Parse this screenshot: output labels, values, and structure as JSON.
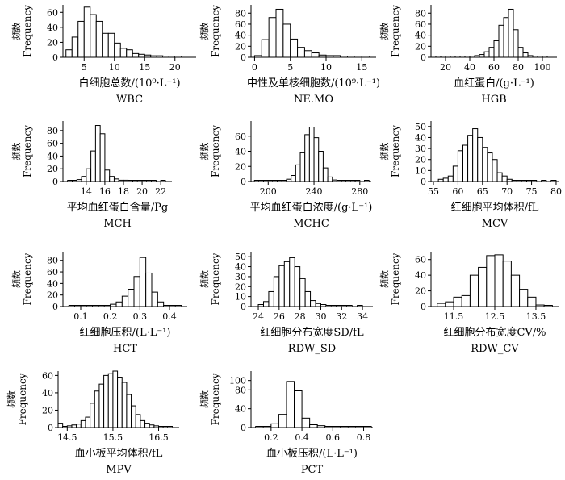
{
  "figure": {
    "ylabel_cn": "频数",
    "ylabel_en": "Frequency"
  },
  "chart_data": [
    {
      "type": "bar",
      "id": "wbc",
      "xlabel_cn": "白细胞总数/(10⁹·L⁻¹)",
      "xlabel_en": "WBC",
      "xlim": [
        1.5,
        23.5
      ],
      "ylim": [
        0,
        70
      ],
      "xticks": [
        5,
        10,
        15,
        20
      ],
      "yticks": [
        0,
        20,
        40,
        60
      ],
      "bin_width": 1,
      "bins": [
        2.5,
        3.5,
        4.5,
        5.5,
        6.5,
        7.5,
        8.5,
        9.5,
        10.5,
        11.5,
        12.5,
        13.5,
        14.5,
        15.5,
        16.5,
        17.5,
        18.5,
        19.5,
        20.5,
        21.5
      ],
      "values": [
        10,
        27,
        48,
        67,
        57,
        48,
        32,
        32,
        19,
        12,
        10,
        5,
        4,
        3,
        2,
        2,
        1,
        1,
        1,
        0
      ]
    },
    {
      "type": "bar",
      "id": "nemo",
      "xlabel_cn": "中性及单核细胞数/(10⁹·L⁻¹)",
      "xlabel_en": "NE.MO",
      "xlim": [
        -0.5,
        17
      ],
      "ylim": [
        0,
        95
      ],
      "xticks": [
        0,
        5,
        10,
        15
      ],
      "yticks": [
        0,
        20,
        40,
        60,
        80
      ],
      "bin_width": 1,
      "bins": [
        0.5,
        1.5,
        2.5,
        3.5,
        4.5,
        5.5,
        6.5,
        7.5,
        8.5,
        9.5,
        10.5,
        11.5,
        12.5,
        13.5,
        14.5,
        15.5
      ],
      "values": [
        3,
        32,
        72,
        87,
        60,
        33,
        18,
        12,
        8,
        4,
        3,
        3,
        2,
        1,
        1,
        1
      ]
    },
    {
      "type": "bar",
      "id": "hgb",
      "xlabel_cn": "血红蛋白/(g·L⁻¹)",
      "xlabel_en": "HGB",
      "xlim": [
        8,
        112
      ],
      "ylim": [
        0,
        95
      ],
      "xticks": [
        20,
        40,
        60,
        80,
        100
      ],
      "yticks": [
        0,
        20,
        40,
        60,
        80
      ],
      "bin_width": 4,
      "bins": [
        14,
        18,
        22,
        26,
        30,
        34,
        38,
        42,
        46,
        50,
        54,
        58,
        62,
        66,
        70,
        74,
        78,
        82,
        86,
        90,
        94,
        98,
        102,
        106
      ],
      "values": [
        1,
        1,
        1,
        1,
        1,
        1,
        1,
        2,
        3,
        5,
        10,
        18,
        30,
        58,
        72,
        87,
        50,
        18,
        8,
        3,
        2,
        1,
        1,
        0
      ]
    },
    {
      "type": "bar",
      "id": "mch",
      "xlabel_cn": "平均血红蛋白含量/Pg",
      "xlabel_en": "MCH",
      "xlim": [
        11.5,
        23.2
      ],
      "ylim": [
        0,
        95
      ],
      "xticks": [
        14,
        16,
        18,
        20,
        22
      ],
      "yticks": [
        0,
        20,
        40,
        60,
        80
      ],
      "bin_width": 0.5,
      "bins": [
        12.25,
        12.75,
        13.25,
        13.75,
        14.25,
        14.75,
        15.25,
        15.75,
        16.25,
        16.75,
        17.25,
        17.75,
        18.25,
        18.75,
        19.25,
        19.75,
        20.25,
        20.75,
        21.25,
        21.75,
        22.25
      ],
      "values": [
        1,
        1,
        3,
        8,
        20,
        48,
        88,
        75,
        18,
        8,
        4,
        2,
        2,
        1,
        1,
        1,
        1,
        1,
        1,
        0,
        1
      ]
    },
    {
      "type": "bar",
      "id": "mchc",
      "xlabel_cn": "平均血红蛋白浓度/(g·L⁻¹)",
      "xlabel_en": "MCHC",
      "xlim": [
        185,
        290
      ],
      "ylim": [
        0,
        80
      ],
      "xticks": [
        200,
        240,
        280
      ],
      "yticks": [
        0,
        20,
        40,
        60
      ],
      "bin_width": 4,
      "bins": [
        190,
        194,
        198,
        202,
        206,
        210,
        214,
        218,
        222,
        226,
        230,
        234,
        238,
        242,
        246,
        250,
        254,
        258,
        262,
        266,
        270,
        274,
        278,
        282,
        286
      ],
      "values": [
        1,
        1,
        1,
        1,
        1,
        1,
        1,
        3,
        8,
        22,
        38,
        62,
        72,
        58,
        40,
        18,
        6,
        2,
        1,
        1,
        1,
        1,
        1,
        0,
        1
      ]
    },
    {
      "type": "bar",
      "id": "mcv",
      "xlabel_cn": "红细胞平均体积/fL",
      "xlabel_en": "MCV",
      "xlim": [
        54.5,
        80.5
      ],
      "ylim": [
        0,
        55
      ],
      "xticks": [
        55,
        60,
        65,
        70,
        75,
        80
      ],
      "yticks": [
        0,
        10,
        20,
        30,
        40,
        50
      ],
      "bin_width": 1,
      "bins": [
        56.5,
        57.5,
        58.5,
        59.5,
        60.5,
        61.5,
        62.5,
        63.5,
        64.5,
        65.5,
        66.5,
        67.5,
        68.5,
        69.5,
        70.5,
        71.5,
        72.5,
        73.5,
        74.5,
        75.5,
        76.5,
        77.5,
        78.5,
        79.5
      ],
      "values": [
        2,
        3,
        5,
        14,
        28,
        33,
        42,
        48,
        40,
        31,
        26,
        20,
        8,
        5,
        2,
        1,
        1,
        1,
        1,
        1,
        0,
        1,
        0,
        1
      ]
    },
    {
      "type": "bar",
      "id": "hct",
      "xlabel_cn": "红细胞压积/(L·L⁻¹)",
      "xlabel_en": "HCT",
      "xlim": [
        0.04,
        0.46
      ],
      "ylim": [
        0,
        95
      ],
      "xticks": [
        0.1,
        0.2,
        0.3,
        0.4
      ],
      "yticks": [
        0,
        20,
        40,
        60,
        80
      ],
      "bin_width": 0.02,
      "bins": [
        0.07,
        0.09,
        0.11,
        0.13,
        0.15,
        0.17,
        0.19,
        0.21,
        0.23,
        0.25,
        0.27,
        0.29,
        0.31,
        0.33,
        0.35,
        0.37,
        0.39,
        0.41,
        0.43
      ],
      "values": [
        1,
        1,
        1,
        1,
        1,
        1,
        2,
        4,
        8,
        18,
        30,
        52,
        85,
        58,
        25,
        8,
        2,
        1,
        1
      ]
    },
    {
      "type": "bar",
      "id": "rdw_sd",
      "xlabel_cn": "红细胞分布宽度SD/fL",
      "xlabel_en": "RDW_SD",
      "xlim": [
        23.3,
        35
      ],
      "ylim": [
        0,
        55
      ],
      "xticks": [
        24,
        26,
        28,
        30,
        32,
        34
      ],
      "yticks": [
        0,
        10,
        20,
        30,
        40,
        50
      ],
      "bin_width": 0.5,
      "bins": [
        24.25,
        24.75,
        25.25,
        25.75,
        26.25,
        26.75,
        27.25,
        27.75,
        28.25,
        28.75,
        29.25,
        29.75,
        30.25,
        30.75,
        31.25,
        31.75,
        32.25,
        32.75,
        33.25,
        33.75,
        34.25
      ],
      "values": [
        2,
        5,
        15,
        30,
        41,
        45,
        49,
        40,
        28,
        15,
        6,
        3,
        2,
        1,
        1,
        1,
        1,
        1,
        0,
        1,
        0
      ]
    },
    {
      "type": "bar",
      "id": "rdw_cv",
      "xlabel_cn": "红细胞分布宽度CV/%",
      "xlabel_en": "RDW_CV",
      "xlim": [
        10.95,
        14.05
      ],
      "ylim": [
        0,
        70
      ],
      "xticks": [
        11.5,
        12.5,
        13.5
      ],
      "yticks": [
        0,
        20,
        40,
        60
      ],
      "bin_width": 0.2,
      "bins": [
        11.2,
        11.4,
        11.6,
        11.8,
        12.0,
        12.2,
        12.4,
        12.6,
        12.8,
        13.0,
        13.2,
        13.4,
        13.6,
        13.8
      ],
      "values": [
        4,
        6,
        12,
        14,
        40,
        50,
        65,
        66,
        58,
        40,
        22,
        12,
        2,
        1
      ]
    },
    {
      "type": "bar",
      "id": "mpv",
      "xlabel_cn": "血小板平均体积/fL",
      "xlabel_en": "MPV",
      "xlim": [
        14.3,
        16.95
      ],
      "ylim": [
        0,
        65
      ],
      "xticks": [
        14.5,
        15.5,
        16.5
      ],
      "yticks": [
        0,
        20,
        40,
        60
      ],
      "bin_width": 0.1,
      "bins": [
        14.35,
        14.45,
        14.55,
        14.65,
        14.75,
        14.85,
        14.95,
        15.05,
        15.15,
        15.25,
        15.35,
        15.45,
        15.55,
        15.65,
        15.75,
        15.85,
        15.95,
        16.05,
        16.15,
        16.25,
        16.35,
        16.45,
        16.55,
        16.65,
        16.75,
        16.85
      ],
      "values": [
        5,
        1,
        2,
        3,
        4,
        8,
        12,
        28,
        42,
        50,
        60,
        62,
        65,
        58,
        52,
        38,
        25,
        15,
        8,
        5,
        3,
        2,
        1,
        1,
        1,
        0
      ]
    },
    {
      "type": "bar",
      "id": "pct",
      "xlabel_cn": "血小板压积/(L·L⁻¹)",
      "xlabel_en": "PCT",
      "xlim": [
        0.07,
        0.86
      ],
      "ylim": [
        0,
        120
      ],
      "xticks": [
        0.2,
        0.4,
        0.6,
        0.8
      ],
      "yticks": [
        0,
        40,
        80,
        100
      ],
      "bin_width": 0.05,
      "bins": [
        0.125,
        0.175,
        0.225,
        0.275,
        0.325,
        0.375,
        0.425,
        0.475,
        0.525,
        0.575,
        0.625,
        0.675,
        0.725,
        0.775,
        0.825
      ],
      "values": [
        1,
        1,
        8,
        28,
        98,
        78,
        20,
        6,
        4,
        1,
        1,
        1,
        1,
        1,
        1
      ]
    }
  ]
}
